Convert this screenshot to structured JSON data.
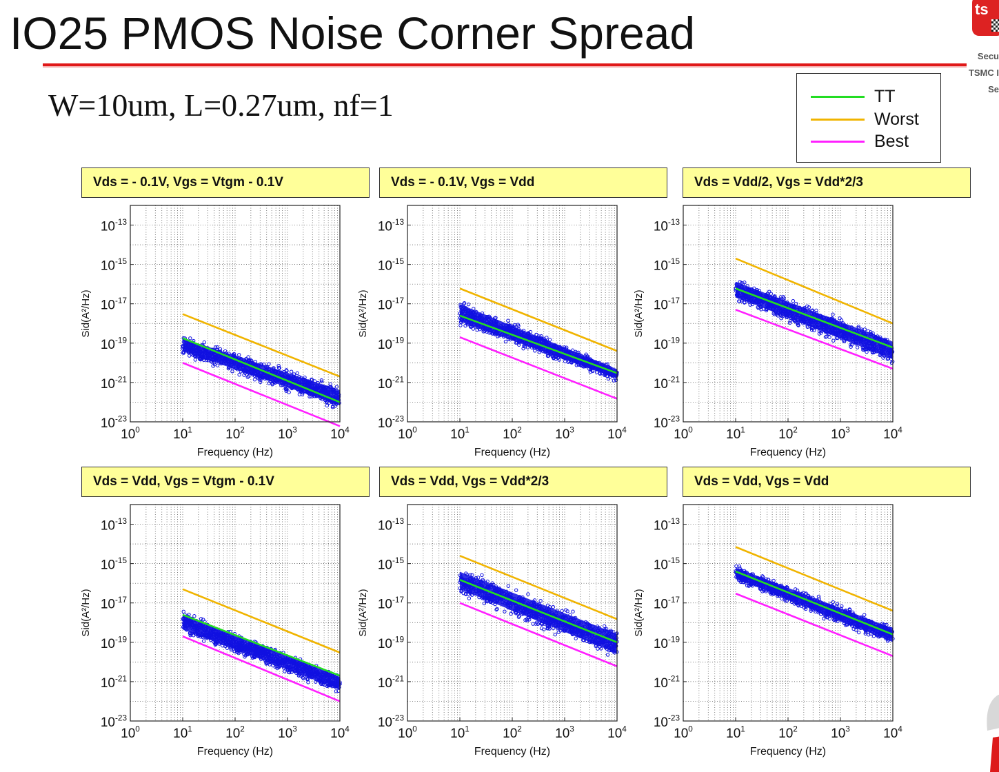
{
  "slide": {
    "title": "IO25 PMOS Noise Corner Spread",
    "subtitle": "W=10um, L=0.27um, nf=1",
    "logo_lines": [
      "Secu",
      "TSMC I",
      "Se"
    ],
    "logo_badge": "ts"
  },
  "legend": [
    {
      "label": "TT",
      "color": "#22dd22"
    },
    {
      "label": "Worst",
      "color": "#f0b400"
    },
    {
      "label": "Best",
      "color": "#ff20ff"
    }
  ],
  "colors": {
    "scatter": "#1010e0",
    "tt": "#22dd22",
    "worst": "#f0b400",
    "best": "#ff20ff",
    "header_bg": "#ffff99",
    "title_rule": "#e01818"
  },
  "chart_data": [
    {
      "type": "scatter",
      "header": "Vds = - 0.1V,  Vgs = Vtgm - 0.1V",
      "xlabel": "Frequency (Hz)",
      "ylabel": "Sid(A²/Hz)",
      "xscale": "log",
      "yscale": "log",
      "xlim": [
        1,
        10000
      ],
      "ylim": [
        1e-23,
        1e-12
      ],
      "grid": "minor, dotted",
      "xticks": [
        "10^0",
        "10^1",
        "10^2",
        "10^3",
        "10^4"
      ],
      "yticks": [
        "10^-13",
        "10^-15",
        "10^-17",
        "10^-19",
        "10^-21",
        "10^-23"
      ],
      "series": [
        {
          "name": "TT",
          "x": [
            10,
            10000
          ],
          "y": [
            1.8e-19,
            1e-22
          ]
        },
        {
          "name": "Worst",
          "x": [
            10,
            10000
          ],
          "y": [
            3e-18,
            2e-21
          ]
        },
        {
          "name": "Best",
          "x": [
            10,
            10000
          ],
          "y": [
            1e-20,
            6e-24
          ]
        }
      ],
      "scatter_band": {
        "x": [
          10,
          10000
        ],
        "y_low": [
          2e-20,
          3e-23
        ],
        "y_high": [
          3e-19,
          8e-22
        ]
      }
    },
    {
      "type": "scatter",
      "header": "Vds = - 0.1V,  Vgs = Vdd",
      "xlabel": "Frequency (Hz)",
      "ylabel": "Sid(A²/Hz)",
      "xscale": "log",
      "yscale": "log",
      "xlim": [
        1,
        10000
      ],
      "ylim": [
        1e-23,
        1e-12
      ],
      "grid": "minor, dotted",
      "xticks": [
        "10^0",
        "10^1",
        "10^2",
        "10^3",
        "10^4"
      ],
      "yticks": [
        "10^-13",
        "10^-15",
        "10^-17",
        "10^-19",
        "10^-21",
        "10^-23"
      ],
      "series": [
        {
          "name": "TT",
          "x": [
            10,
            10000
          ],
          "y": [
            2.5e-18,
            3e-21
          ]
        },
        {
          "name": "Worst",
          "x": [
            10,
            10000
          ],
          "y": [
            6e-17,
            4e-20
          ]
        },
        {
          "name": "Best",
          "x": [
            10,
            10000
          ],
          "y": [
            2e-19,
            1.5e-22
          ]
        }
      ],
      "scatter_band": {
        "x": [
          10,
          10000
        ],
        "y_low": [
          5e-19,
          1e-21
        ],
        "y_high": [
          2e-17,
          7e-21
        ]
      }
    },
    {
      "type": "scatter",
      "header": "Vds = Vdd/2,  Vgs = Vdd*2/3",
      "xlabel": "Frequency (Hz)",
      "ylabel": "Sid(A²/Hz)",
      "xscale": "log",
      "yscale": "log",
      "xlim": [
        1,
        10000
      ],
      "ylim": [
        1e-23,
        1e-12
      ],
      "grid": "minor, dotted",
      "xticks": [
        "10^0",
        "10^1",
        "10^2",
        "10^3",
        "10^4"
      ],
      "yticks": [
        "10^-13",
        "10^-15",
        "10^-17",
        "10^-19",
        "10^-21",
        "10^-23"
      ],
      "series": [
        {
          "name": "TT",
          "x": [
            10,
            10000
          ],
          "y": [
            6e-17,
            6e-20
          ]
        },
        {
          "name": "Worst",
          "x": [
            10,
            10000
          ],
          "y": [
            2e-15,
            1e-18
          ]
        },
        {
          "name": "Best",
          "x": [
            10,
            10000
          ],
          "y": [
            5e-18,
            5e-21
          ]
        }
      ],
      "scatter_band": {
        "x": [
          10,
          10000
        ],
        "y_low": [
          1e-17,
          6e-21
        ],
        "y_high": [
          2.5e-16,
          2.5e-19
        ]
      }
    },
    {
      "type": "scatter",
      "header": "Vds = Vdd,  Vgs = Vtgm - 0.1V",
      "xlabel": "Frequency (Hz)",
      "ylabel": "Sid(A²/Hz)",
      "xscale": "log",
      "yscale": "log",
      "xlim": [
        1,
        10000
      ],
      "ylim": [
        1e-23,
        1e-12
      ],
      "grid": "minor, dotted",
      "xticks": [
        "10^0",
        "10^1",
        "10^2",
        "10^3",
        "10^4"
      ],
      "yticks": [
        "10^-13",
        "10^-15",
        "10^-17",
        "10^-19",
        "10^-21",
        "10^-23"
      ],
      "series": [
        {
          "name": "TT",
          "x": [
            10,
            10000
          ],
          "y": [
            2.5e-18,
            2e-21
          ]
        },
        {
          "name": "Worst",
          "x": [
            10,
            10000
          ],
          "y": [
            5e-17,
            3e-20
          ]
        },
        {
          "name": "Best",
          "x": [
            10,
            10000
          ],
          "y": [
            2e-19,
            1e-22
          ]
        }
      ],
      "scatter_band": {
        "x": [
          10,
          10000
        ],
        "y_low": [
          2e-19,
          2e-22
        ],
        "y_high": [
          5e-18,
          3e-21
        ]
      }
    },
    {
      "type": "scatter",
      "header": "Vds = Vdd,  Vgs = Vdd*2/3",
      "xlabel": "Frequency (Hz)",
      "ylabel": "Sid(A²/Hz)",
      "xscale": "log",
      "yscale": "log",
      "xlim": [
        1,
        10000
      ],
      "ylim": [
        1e-23,
        1e-12
      ],
      "grid": "minor, dotted",
      "xticks": [
        "10^0",
        "10^1",
        "10^2",
        "10^3",
        "10^4"
      ],
      "yticks": [
        "10^-13",
        "10^-15",
        "10^-17",
        "10^-19",
        "10^-21",
        "10^-23"
      ],
      "series": [
        {
          "name": "TT",
          "x": [
            10,
            10000
          ],
          "y": [
            1.5e-16,
            1e-19
          ]
        },
        {
          "name": "Worst",
          "x": [
            10,
            10000
          ],
          "y": [
            2.5e-15,
            1.5e-18
          ]
        },
        {
          "name": "Best",
          "x": [
            10,
            10000
          ],
          "y": [
            1e-17,
            6e-21
          ]
        }
      ],
      "scatter_band": {
        "x": [
          10,
          10000
        ],
        "y_low": [
          2e-17,
          1e-20
        ],
        "y_high": [
          8e-16,
          6e-19
        ]
      }
    },
    {
      "type": "scatter",
      "header": "Vds = Vdd,  Vgs = Vdd",
      "xlabel": "Frequency (Hz)",
      "ylabel": "Sid(A²/Hz)",
      "xscale": "log",
      "yscale": "log",
      "xlim": [
        1,
        10000
      ],
      "ylim": [
        1e-23,
        1e-12
      ],
      "grid": "minor, dotted",
      "xticks": [
        "10^0",
        "10^1",
        "10^2",
        "10^3",
        "10^4"
      ],
      "yticks": [
        "10^-13",
        "10^-15",
        "10^-17",
        "10^-19",
        "10^-21",
        "10^-23"
      ],
      "series": [
        {
          "name": "TT",
          "x": [
            10,
            10000
          ],
          "y": [
            4e-16,
            2.5e-19
          ]
        },
        {
          "name": "Worst",
          "x": [
            10,
            10000
          ],
          "y": [
            7e-15,
            4e-18
          ]
        },
        {
          "name": "Best",
          "x": [
            10,
            10000
          ],
          "y": [
            3e-17,
            2e-20
          ]
        }
      ],
      "scatter_band": {
        "x": [
          10,
          10000
        ],
        "y_low": [
          1e-16,
          5e-20
        ],
        "y_high": [
          1e-15,
          9e-19
        ]
      }
    }
  ]
}
